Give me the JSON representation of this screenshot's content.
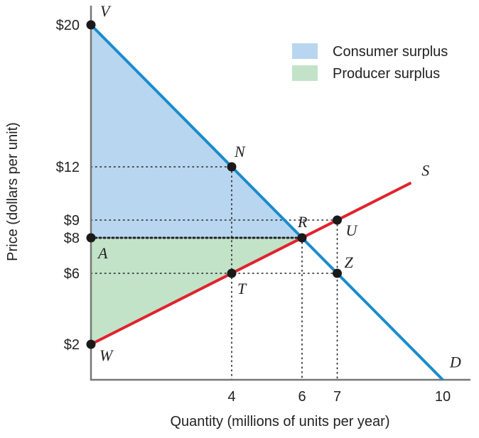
{
  "chart_data": {
    "type": "line",
    "xlabel": "Quantity (millions of units per year)",
    "ylabel": "Price (dollars per unit)",
    "xlim": [
      0,
      10.5
    ],
    "ylim": [
      0,
      21
    ],
    "x_ticks": [
      {
        "value": 4,
        "label": "4"
      },
      {
        "value": 6,
        "label": "6"
      },
      {
        "value": 7,
        "label": "7"
      },
      {
        "value": 10,
        "label": "10"
      }
    ],
    "y_ticks": [
      {
        "value": 20,
        "label": "$20"
      },
      {
        "value": 12,
        "label": "$12"
      },
      {
        "value": 9,
        "label": "$9"
      },
      {
        "value": 8,
        "label": "$8"
      },
      {
        "value": 6,
        "label": "$6"
      },
      {
        "value": 2,
        "label": "$2"
      }
    ],
    "series": [
      {
        "name": "D",
        "color": "#1a8ccc",
        "x": [
          0,
          10
        ],
        "y": [
          20,
          0
        ]
      },
      {
        "name": "S",
        "color": "#e0232e",
        "x": [
          0,
          9.1
        ],
        "y": [
          2,
          11.1
        ]
      }
    ],
    "points": [
      {
        "label": "V",
        "x": 0,
        "y": 20
      },
      {
        "label": "N",
        "x": 4,
        "y": 12
      },
      {
        "label": "R",
        "x": 6,
        "y": 8
      },
      {
        "label": "U",
        "x": 7,
        "y": 9
      },
      {
        "label": "Z",
        "x": 7,
        "y": 6
      },
      {
        "label": "A",
        "x": 0,
        "y": 8
      },
      {
        "label": "T",
        "x": 4,
        "y": 6
      },
      {
        "label": "W",
        "x": 0,
        "y": 2
      }
    ],
    "curve_labels": [
      {
        "label": "S",
        "x": 9.4,
        "y": 11.5
      },
      {
        "label": "D",
        "x": 10.2,
        "y": 0.7
      }
    ],
    "legend": {
      "placement": "top-right",
      "items": [
        {
          "label": "Consumer surplus",
          "color": "#b8d6ef"
        },
        {
          "label": "Producer surplus",
          "color": "#c2e3c8"
        }
      ]
    },
    "areas": [
      {
        "name": "Consumer surplus",
        "color": "#b8d6ef",
        "polygon": [
          [
            0,
            20
          ],
          [
            6,
            8
          ],
          [
            0,
            8
          ]
        ]
      },
      {
        "name": "Producer surplus",
        "color": "#c2e3c8",
        "polygon": [
          [
            0,
            8
          ],
          [
            6,
            8
          ],
          [
            0,
            2
          ]
        ]
      }
    ],
    "guides": [
      {
        "from": [
          0,
          12
        ],
        "to": [
          4,
          12
        ],
        "weight": "light"
      },
      {
        "from": [
          0,
          9
        ],
        "to": [
          7,
          9
        ],
        "weight": "light"
      },
      {
        "from": [
          0,
          8
        ],
        "to": [
          6,
          8
        ],
        "weight": "heavy"
      },
      {
        "from": [
          0,
          6
        ],
        "to": [
          7,
          6
        ],
        "weight": "light"
      },
      {
        "from": [
          4,
          12
        ],
        "to": [
          4,
          0
        ],
        "weight": "light"
      },
      {
        "from": [
          6,
          8
        ],
        "to": [
          6,
          0
        ],
        "weight": "light"
      },
      {
        "from": [
          7,
          9
        ],
        "to": [
          7,
          0
        ],
        "weight": "light"
      }
    ],
    "axis_color": "#777777",
    "grid": false
  }
}
